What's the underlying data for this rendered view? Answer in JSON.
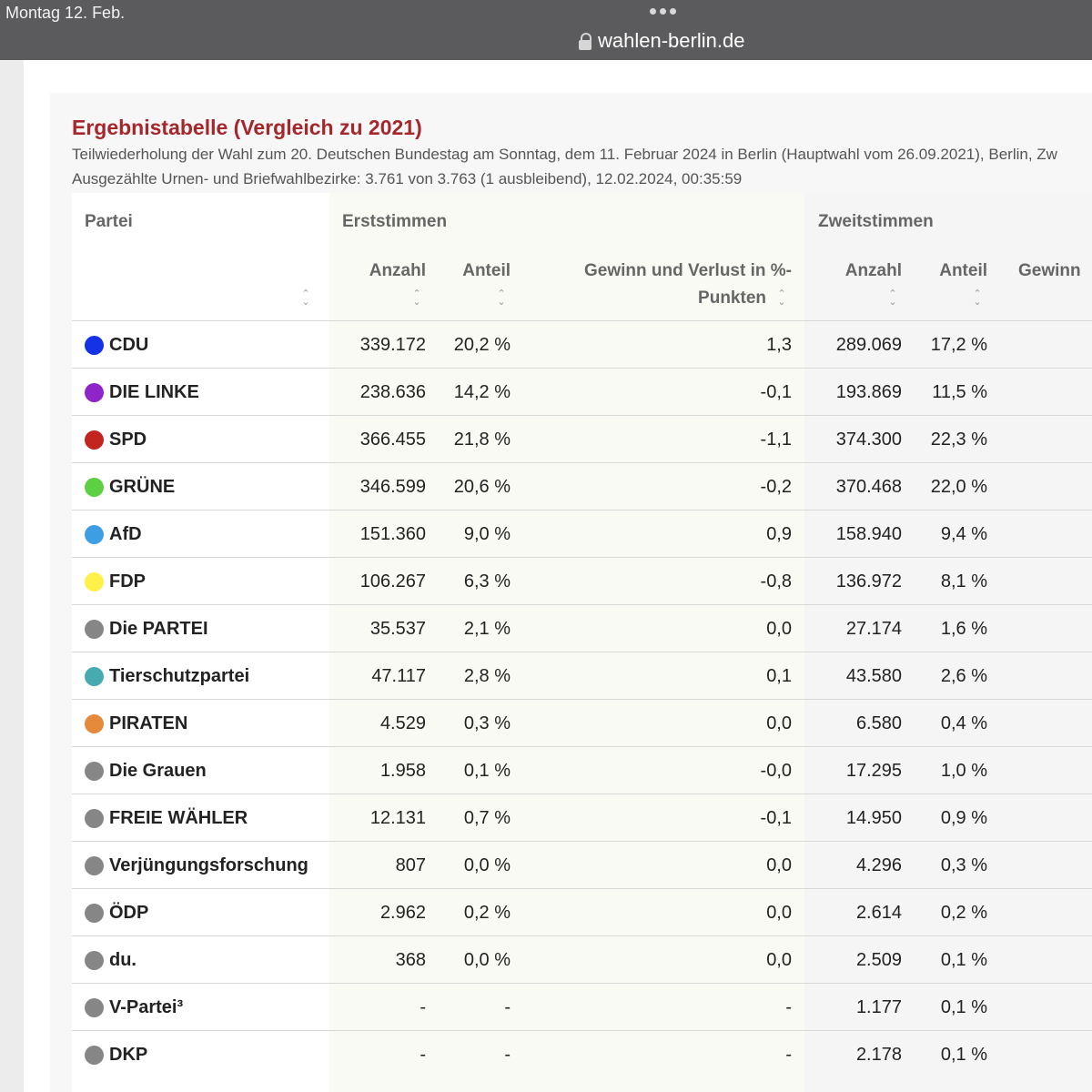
{
  "status_bar": {
    "time": "Montag 12. Feb."
  },
  "browser": {
    "url": "wahlen-berlin.de"
  },
  "page": {
    "title": "Ergebnistabelle (Vergleich zu 2021)",
    "subtitle_line1": "Teilwiederholung der Wahl zum 20. Deutschen Bundestag am Sonntag, dem 11. Februar 2024 in Berlin (Hauptwahl vom 26.09.2021), Berlin, Zw",
    "subtitle_line2": "Ausgezählte Urnen- und Briefwahlbezirke: 3.761 von 3.763 (1 ausbleibend), 12.02.2024, 00:35:59"
  },
  "table": {
    "headers": {
      "partei": "Partei",
      "erststimmen": "Erststimmen",
      "zweitstimmen": "Zweitstimmen",
      "anzahl": "Anzahl",
      "anteil": "Anteil",
      "gewinn_line1": "Gewinn und Verlust in %-",
      "gewinn_line2": "Punkten",
      "gewinn_short": "Gewinn"
    },
    "rows": [
      {
        "party": "CDU",
        "color": "#1432e6",
        "e_anzahl": "339.172",
        "e_anteil": "20,2 %",
        "gewinn": "1,3",
        "z_anzahl": "289.069",
        "z_anteil": "17,2 %"
      },
      {
        "party": "DIE LINKE",
        "color": "#8f25c9",
        "e_anzahl": "238.636",
        "e_anteil": "14,2 %",
        "gewinn": "-0,1",
        "z_anzahl": "193.869",
        "z_anteil": "11,5 %"
      },
      {
        "party": "SPD",
        "color": "#c2241f",
        "e_anzahl": "366.455",
        "e_anteil": "21,8 %",
        "gewinn": "-1,1",
        "z_anzahl": "374.300",
        "z_anteil": "22,3 %"
      },
      {
        "party": "GRÜNE",
        "color": "#5ccf42",
        "e_anzahl": "346.599",
        "e_anteil": "20,6 %",
        "gewinn": "-0,2",
        "z_anzahl": "370.468",
        "z_anteil": "22,0 %"
      },
      {
        "party": "AfD",
        "color": "#3d9ee3",
        "e_anzahl": "151.360",
        "e_anteil": "9,0 %",
        "gewinn": "0,9",
        "z_anzahl": "158.940",
        "z_anteil": "9,4 %"
      },
      {
        "party": "FDP",
        "color": "#fff04a",
        "e_anzahl": "106.267",
        "e_anteil": "6,3 %",
        "gewinn": "-0,8",
        "z_anzahl": "136.972",
        "z_anteil": "8,1 %"
      },
      {
        "party": "Die PARTEI",
        "color": "#868686",
        "e_anzahl": "35.537",
        "e_anteil": "2,1 %",
        "gewinn": "0,0",
        "z_anzahl": "27.174",
        "z_anteil": "1,6 %"
      },
      {
        "party": "Tierschutzpartei",
        "color": "#47aab0",
        "e_anzahl": "47.117",
        "e_anteil": "2,8 %",
        "gewinn": "0,1",
        "z_anzahl": "43.580",
        "z_anteil": "2,6 %"
      },
      {
        "party": "PIRATEN",
        "color": "#e5893a",
        "e_anzahl": "4.529",
        "e_anteil": "0,3 %",
        "gewinn": "0,0",
        "z_anzahl": "6.580",
        "z_anteil": "0,4 %"
      },
      {
        "party": "Die Grauen",
        "color": "#868686",
        "e_anzahl": "1.958",
        "e_anteil": "0,1 %",
        "gewinn": "-0,0",
        "z_anzahl": "17.295",
        "z_anteil": "1,0 %"
      },
      {
        "party": "FREIE WÄHLER",
        "color": "#868686",
        "e_anzahl": "12.131",
        "e_anteil": "0,7 %",
        "gewinn": "-0,1",
        "z_anzahl": "14.950",
        "z_anteil": "0,9 %"
      },
      {
        "party": "Verjüngungsforschung",
        "color": "#868686",
        "e_anzahl": "807",
        "e_anteil": "0,0 %",
        "gewinn": "0,0",
        "z_anzahl": "4.296",
        "z_anteil": "0,3 %"
      },
      {
        "party": "ÖDP",
        "color": "#868686",
        "e_anzahl": "2.962",
        "e_anteil": "0,2 %",
        "gewinn": "0,0",
        "z_anzahl": "2.614",
        "z_anteil": "0,2 %"
      },
      {
        "party": "du.",
        "color": "#868686",
        "e_anzahl": "368",
        "e_anteil": "0,0 %",
        "gewinn": "0,0",
        "z_anzahl": "2.509",
        "z_anteil": "0,1 %"
      },
      {
        "party": "V-Partei³",
        "color": "#868686",
        "e_anzahl": "-",
        "e_anteil": "-",
        "gewinn": "-",
        "z_anzahl": "1.177",
        "z_anteil": "0,1 %"
      },
      {
        "party": "DKP",
        "color": "#868686",
        "e_anzahl": "-",
        "e_anteil": "-",
        "gewinn": "-",
        "z_anzahl": "2.178",
        "z_anteil": "0,1 %"
      }
    ]
  }
}
